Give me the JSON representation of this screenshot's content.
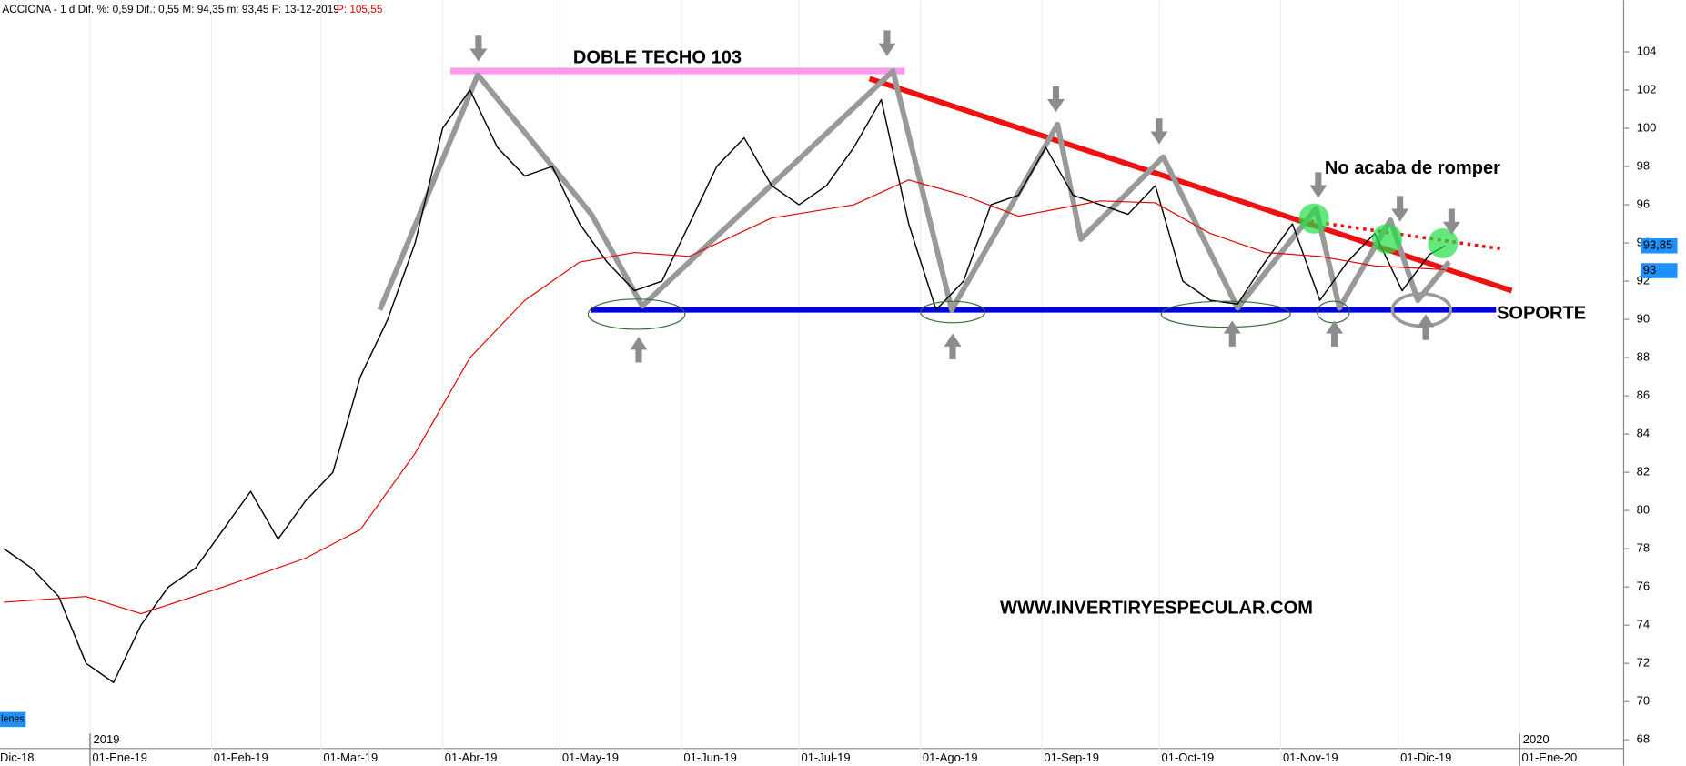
{
  "chart_data": {
    "type": "line",
    "header": "ACCIONA - 1 d  Dif. %: 0,59  Dif.: 0,55  M: 94,35  m: 93,45  F: 13-12-2019",
    "header_p": "P: 105,55",
    "indicator_tab": "lenes",
    "annotations": [
      "DOBLE TECHO 103",
      "No acaba de romper",
      "SOPORTE",
      "WWW.INVERTIRYESPECULAR.COM"
    ],
    "price_labels": [
      {
        "value": 93.85,
        "label": "93,85"
      },
      93
    ],
    "xlim": [
      "2018-12-09",
      "2020-01-27"
    ],
    "ylim": [
      67.6,
      106.7
    ],
    "yticks": [
      68,
      70,
      72,
      74,
      76,
      78,
      80,
      82,
      84,
      86,
      88,
      90,
      92,
      94,
      96,
      98,
      100,
      102,
      104
    ],
    "xticks": [
      {
        "value": "2018-12-01",
        "label": "Dic-18"
      },
      {
        "value": "2019-01-01",
        "label": "01-Ene-19"
      },
      {
        "value": "2019-02-01",
        "label": "01-Feb-19"
      },
      {
        "value": "2019-03-01",
        "label": "01-Mar-19"
      },
      {
        "value": "2019-04-01",
        "label": "01-Abr-19"
      },
      {
        "value": "2019-05-01",
        "label": "01-May-19"
      },
      {
        "value": "2019-06-01",
        "label": "01-Jun-19"
      },
      {
        "value": "2019-07-01",
        "label": "01-Jul-19"
      },
      {
        "value": "2019-08-01",
        "label": "01-Ago-19"
      },
      {
        "value": "2019-09-01",
        "label": "01-Sep-19"
      },
      {
        "value": "2019-10-01",
        "label": "01-Oct-19"
      },
      {
        "value": "2019-11-01",
        "label": "01-Nov-19"
      },
      {
        "value": "2019-12-01",
        "label": "01-Dic-19"
      },
      {
        "value": "2020-01-01",
        "label": "01-Ene-20"
      }
    ],
    "year_ticks": [
      {
        "value": "2019-01-01",
        "label": "2019"
      },
      {
        "value": "2020-01-01",
        "label": "2020"
      }
    ],
    "series": [
      {
        "color": "#000000",
        "x": [
          "2018-12-10",
          "2018-12-17",
          "2018-12-24",
          "2018-12-31",
          "2019-01-07",
          "2019-01-14",
          "2019-01-21",
          "2019-01-28",
          "2019-02-04",
          "2019-02-11",
          "2019-02-18",
          "2019-02-25",
          "2019-03-04",
          "2019-03-11",
          "2019-03-18",
          "2019-03-25",
          "2019-04-01",
          "2019-04-08",
          "2019-04-15",
          "2019-04-22",
          "2019-04-29",
          "2019-05-06",
          "2019-05-13",
          "2019-05-20",
          "2019-05-27",
          "2019-06-03",
          "2019-06-10",
          "2019-06-17",
          "2019-06-24",
          "2019-07-01",
          "2019-07-08",
          "2019-07-15",
          "2019-07-22",
          "2019-07-29",
          "2019-08-05",
          "2019-08-12",
          "2019-08-19",
          "2019-08-26",
          "2019-09-02",
          "2019-09-09",
          "2019-09-16",
          "2019-09-23",
          "2019-09-30",
          "2019-10-07",
          "2019-10-14",
          "2019-10-21",
          "2019-10-28",
          "2019-11-04",
          "2019-11-11",
          "2019-11-18",
          "2019-11-25",
          "2019-12-02",
          "2019-12-09",
          "2019-12-13"
        ],
        "values": [
          78,
          77,
          75.5,
          72,
          71,
          74,
          76,
          77,
          79,
          81,
          78.5,
          80.5,
          82,
          87,
          90,
          94,
          100,
          102,
          99,
          97.5,
          98,
          95,
          93,
          91.5,
          92,
          95,
          98,
          99.5,
          97,
          96,
          97,
          99,
          101.5,
          95,
          90.5,
          92,
          96,
          96.5,
          99,
          96.5,
          96,
          95.5,
          97,
          92,
          91,
          90.8,
          93,
          95,
          91,
          93,
          94.5,
          91.5,
          93.4,
          93.85
        ]
      },
      {
        "color": "#e00000",
        "x": [
          "2018-12-10",
          "2018-12-31",
          "2019-01-14",
          "2019-02-04",
          "2019-02-25",
          "2019-03-11",
          "2019-03-25",
          "2019-04-08",
          "2019-04-22",
          "2019-05-06",
          "2019-05-20",
          "2019-06-03",
          "2019-06-24",
          "2019-07-15",
          "2019-07-29",
          "2019-08-12",
          "2019-08-26",
          "2019-09-16",
          "2019-09-30",
          "2019-10-14",
          "2019-10-28",
          "2019-11-11",
          "2019-11-25",
          "2019-12-13"
        ],
        "values": [
          75.2,
          75.5,
          74.6,
          76,
          77.5,
          79,
          83,
          88,
          91,
          93,
          93.5,
          93.3,
          95.3,
          96,
          97.3,
          96.5,
          95.4,
          96.2,
          96.1,
          94.5,
          93.5,
          93.3,
          92.8,
          92.6
        ]
      }
    ],
    "lines": [
      {
        "color": "#ff99ee",
        "width": 6,
        "x": [
          "2019-04-03",
          "2019-07-28"
        ],
        "values": [
          103,
          103
        ]
      },
      {
        "color": "#0000dd",
        "width": 5,
        "x": [
          "2019-05-09",
          "2019-12-26"
        ],
        "values": [
          90.5,
          90.5
        ]
      },
      {
        "color": "#ee1111",
        "width": 5,
        "x": [
          "2019-07-19",
          "2019-12-30"
        ],
        "values": [
          102.6,
          91.5
        ]
      },
      {
        "color": "#ee1111",
        "width": 3,
        "dash": true,
        "x": [
          "2019-11-03",
          "2019-12-27"
        ],
        "values": [
          95.3,
          93.7
        ]
      },
      {
        "color": "#999999",
        "width": 5,
        "x": [
          "2019-03-16",
          "2019-04-10",
          "2019-05-09",
          "2019-05-22",
          "2019-07-25",
          "2019-08-09",
          "2019-09-05",
          "2019-09-11",
          "2019-10-02",
          "2019-10-21",
          "2019-11-10",
          "2019-11-16",
          "2019-11-29",
          "2019-12-06",
          "2019-12-14"
        ],
        "values": [
          90.5,
          102.8,
          95.5,
          90.7,
          103,
          90.5,
          100.2,
          94.2,
          98.5,
          90.6,
          95.8,
          90.6,
          95.2,
          91,
          93
        ]
      }
    ]
  }
}
